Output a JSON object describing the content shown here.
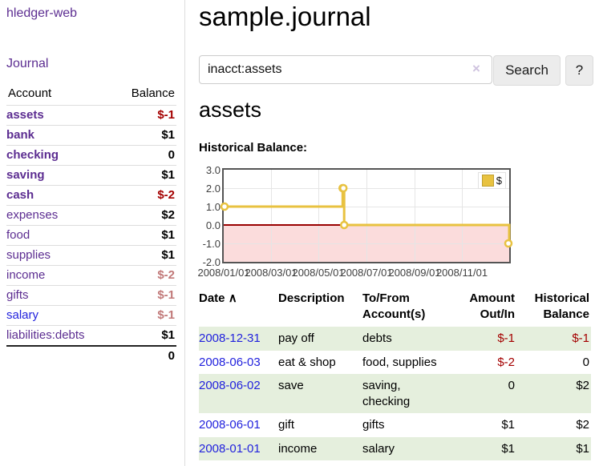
{
  "app": {
    "title": "hledger-web",
    "nav_journal": "Journal"
  },
  "sidebar": {
    "header": {
      "account": "Account",
      "balance": "Balance"
    },
    "accounts": [
      {
        "name": "assets",
        "level": 0,
        "bold": true,
        "balance": "$-1",
        "balance_color": "negative"
      },
      {
        "name": "bank",
        "level": 1,
        "bold": true,
        "balance": "$1",
        "balance_color": "normal"
      },
      {
        "name": "checking",
        "level": 2,
        "bold": true,
        "balance": "0",
        "balance_color": "normal"
      },
      {
        "name": "saving",
        "level": 2,
        "bold": true,
        "balance": "$1",
        "balance_color": "normal"
      },
      {
        "name": "cash",
        "level": 1,
        "bold": true,
        "balance": "$-2",
        "balance_color": "negative"
      },
      {
        "name": "expenses",
        "level": 0,
        "bold": false,
        "balance": "$2",
        "balance_color": "normal"
      },
      {
        "name": "food",
        "level": 1,
        "bold": false,
        "balance": "$1",
        "balance_color": "normal"
      },
      {
        "name": "supplies",
        "level": 1,
        "bold": false,
        "balance": "$1",
        "balance_color": "normal"
      },
      {
        "name": "income",
        "level": 0,
        "bold": false,
        "balance": "$-2",
        "balance_color": "muted-negative"
      },
      {
        "name": "gifts",
        "level": 1,
        "bold": false,
        "balance": "$-1",
        "balance_color": "muted-negative"
      },
      {
        "name": "salary",
        "level": 1,
        "bold": false,
        "balance": "$-1",
        "balance_color": "muted-negative",
        "link_blue": true
      },
      {
        "name": "liabilities:debts",
        "level": 0,
        "bold": false,
        "balance": "$1",
        "balance_color": "normal"
      }
    ],
    "total": "0"
  },
  "header": {
    "title": "sample.journal"
  },
  "search": {
    "value": "inacct:assets",
    "clear_icon": "×",
    "button_label": "Search",
    "help_label": "?"
  },
  "register": {
    "heading": "assets",
    "chart_label": "Historical Balance:",
    "table": {
      "headers": {
        "date": "Date",
        "description": "Description",
        "accounts": "To/From\nAccount(s)",
        "amount": "Amount\nOut/In",
        "balance": "Historical\nBalance"
      },
      "sort_icon": "∧",
      "rows": [
        {
          "date": "2008-12-31",
          "description": "pay off",
          "accounts": "debts",
          "amount": "$-1",
          "amount_neg": true,
          "balance": "$-1",
          "balance_neg": true
        },
        {
          "date": "2008-06-03",
          "description": "eat & shop",
          "accounts": "food, supplies",
          "amount": "$-2",
          "amount_neg": true,
          "balance": "0",
          "balance_neg": false
        },
        {
          "date": "2008-06-02",
          "description": "save",
          "accounts": "saving,\nchecking",
          "amount": "0",
          "amount_neg": false,
          "balance": "$2",
          "balance_neg": false
        },
        {
          "date": "2008-06-01",
          "description": "gift",
          "accounts": "gifts",
          "amount": "$1",
          "amount_neg": false,
          "balance": "$2",
          "balance_neg": false
        },
        {
          "date": "2008-01-01",
          "description": "income",
          "accounts": "salary",
          "amount": "$1",
          "amount_neg": false,
          "balance": "$1",
          "balance_neg": false
        }
      ]
    }
  },
  "chart_data": {
    "type": "line",
    "step": true,
    "title": "Historical Balance",
    "series": [
      {
        "name": "$",
        "x": [
          "2008-01-01",
          "2008-06-01",
          "2008-06-02",
          "2008-06-03",
          "2008-12-31"
        ],
        "values": [
          1,
          2,
          2,
          0,
          -1
        ]
      }
    ],
    "ylim": [
      -2,
      3
    ],
    "yticks": [
      "3.0",
      "2.0",
      "1.0",
      "0.0",
      "-1.0",
      "-2.0"
    ],
    "xticks": [
      "2008/01/01",
      "2008/03/01",
      "2008/05/01",
      "2008/07/01",
      "2008/09/01",
      "2008/11/01"
    ],
    "x_range": [
      "2008-01-01",
      "2008-12-31"
    ],
    "grid": true,
    "legend": {
      "label": "$",
      "position": "top-right"
    },
    "colors": {
      "line": "#e8c240",
      "marker_fill": "#ffffff",
      "negative_fill": "#fbdcdc",
      "zero_line": "#990000",
      "grid": "#e5e5e5",
      "border": "#545454"
    }
  }
}
